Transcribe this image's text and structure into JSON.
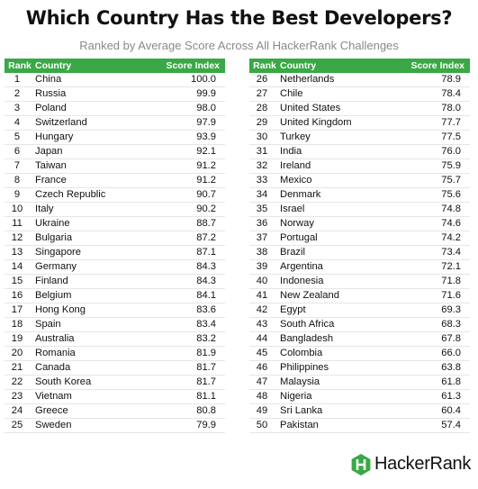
{
  "title": "Which Country Has the Best Developers?",
  "subtitle": "Ranked by Average Score Across All HackerRank Challenges",
  "headers": {
    "rank": "Rank",
    "country": "Country",
    "score": "Score Index"
  },
  "brand": {
    "name": "HackerRank",
    "logo_letter": "H",
    "color": "#39a845"
  },
  "chart_data": {
    "type": "table",
    "columns": [
      "Rank",
      "Country",
      "Score Index"
    ],
    "rows": [
      [
        "1",
        "China",
        "100.0"
      ],
      [
        "2",
        "Russia",
        "99.9"
      ],
      [
        "3",
        "Poland",
        "98.0"
      ],
      [
        "4",
        "Switzerland",
        "97.9"
      ],
      [
        "5",
        "Hungary",
        "93.9"
      ],
      [
        "6",
        "Japan",
        "92.1"
      ],
      [
        "7",
        "Taiwan",
        "91.2"
      ],
      [
        "8",
        "France",
        "91.2"
      ],
      [
        "9",
        "Czech Republic",
        "90.7"
      ],
      [
        "10",
        "Italy",
        "90.2"
      ],
      [
        "11",
        "Ukraine",
        "88.7"
      ],
      [
        "12",
        "Bulgaria",
        "87.2"
      ],
      [
        "13",
        "Singapore",
        "87.1"
      ],
      [
        "14",
        "Germany",
        "84.3"
      ],
      [
        "15",
        "Finland",
        "84.3"
      ],
      [
        "16",
        "Belgium",
        "84.1"
      ],
      [
        "17",
        "Hong Kong",
        "83.6"
      ],
      [
        "18",
        "Spain",
        "83.4"
      ],
      [
        "19",
        "Australia",
        "83.2"
      ],
      [
        "20",
        "Romania",
        "81.9"
      ],
      [
        "21",
        "Canada",
        "81.7"
      ],
      [
        "22",
        "South Korea",
        "81.7"
      ],
      [
        "23",
        "Vietnam",
        "81.1"
      ],
      [
        "24",
        "Greece",
        "80.8"
      ],
      [
        "25",
        "Sweden",
        "79.9"
      ],
      [
        "26",
        "Netherlands",
        "78.9"
      ],
      [
        "27",
        "Chile",
        "78.4"
      ],
      [
        "28",
        "United States",
        "78.0"
      ],
      [
        "29",
        "United Kingdom",
        "77.7"
      ],
      [
        "30",
        "Turkey",
        "77.5"
      ],
      [
        "31",
        "India",
        "76.0"
      ],
      [
        "32",
        "Ireland",
        "75.9"
      ],
      [
        "33",
        "Mexico",
        "75.7"
      ],
      [
        "34",
        "Denmark",
        "75.6"
      ],
      [
        "35",
        "Israel",
        "74.8"
      ],
      [
        "36",
        "Norway",
        "74.6"
      ],
      [
        "37",
        "Portugal",
        "74.2"
      ],
      [
        "38",
        "Brazil",
        "73.4"
      ],
      [
        "39",
        "Argentina",
        "72.1"
      ],
      [
        "40",
        "Indonesia",
        "71.8"
      ],
      [
        "41",
        "New Zealand",
        "71.6"
      ],
      [
        "42",
        "Egypt",
        "69.3"
      ],
      [
        "43",
        "South Africa",
        "68.3"
      ],
      [
        "44",
        "Bangladesh",
        "67.8"
      ],
      [
        "45",
        "Colombia",
        "66.0"
      ],
      [
        "46",
        "Philippines",
        "63.8"
      ],
      [
        "47",
        "Malaysia",
        "61.8"
      ],
      [
        "48",
        "Nigeria",
        "61.3"
      ],
      [
        "49",
        "Sri Lanka",
        "60.4"
      ],
      [
        "50",
        "Pakistan",
        "57.4"
      ]
    ]
  }
}
